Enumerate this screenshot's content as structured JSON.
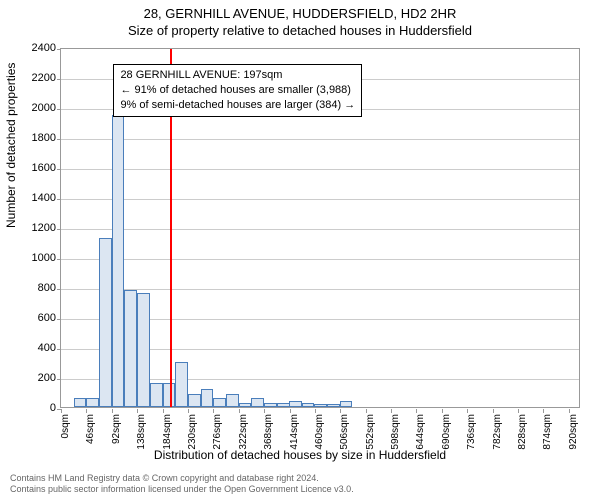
{
  "title": {
    "line1": "28, GERNHILL AVENUE, HUDDERSFIELD, HD2 2HR",
    "line2": "Size of property relative to detached houses in Huddersfield"
  },
  "chart": {
    "type": "histogram",
    "ylabel": "Number of detached properties",
    "xlabel": "Distribution of detached houses by size in Huddersfield",
    "ylim": [
      0,
      2400
    ],
    "ytick_step": 200,
    "xlim_sqm": [
      0,
      942
    ],
    "xtick_step_sqm": 46,
    "xtick_unit": "sqm",
    "bar_fill": "#dce6f2",
    "bar_stroke": "#4a7ebb",
    "grid_color": "#cccccc",
    "axis_color": "#999999",
    "background": "#ffffff",
    "bar_bin_width_sqm": 23,
    "bars": [
      {
        "x_sqm": 23,
        "count": 60
      },
      {
        "x_sqm": 46,
        "count": 60
      },
      {
        "x_sqm": 69,
        "count": 1130
      },
      {
        "x_sqm": 92,
        "count": 1950
      },
      {
        "x_sqm": 115,
        "count": 780
      },
      {
        "x_sqm": 138,
        "count": 760
      },
      {
        "x_sqm": 161,
        "count": 160
      },
      {
        "x_sqm": 184,
        "count": 160
      },
      {
        "x_sqm": 207,
        "count": 300
      },
      {
        "x_sqm": 230,
        "count": 90
      },
      {
        "x_sqm": 253,
        "count": 120
      },
      {
        "x_sqm": 276,
        "count": 60
      },
      {
        "x_sqm": 299,
        "count": 90
      },
      {
        "x_sqm": 322,
        "count": 30
      },
      {
        "x_sqm": 345,
        "count": 60
      },
      {
        "x_sqm": 368,
        "count": 30
      },
      {
        "x_sqm": 391,
        "count": 30
      },
      {
        "x_sqm": 413,
        "count": 40
      },
      {
        "x_sqm": 436,
        "count": 30
      },
      {
        "x_sqm": 459,
        "count": 20
      },
      {
        "x_sqm": 482,
        "count": 20
      },
      {
        "x_sqm": 505,
        "count": 40
      }
    ],
    "marker_line": {
      "x_sqm": 197,
      "color": "#ff0000"
    },
    "annotation": {
      "line1": "28 GERNHILL AVENUE: 197sqm",
      "line2": "← 91% of detached houses are smaller (3,988)",
      "line3": "9% of semi-detached houses are larger (384) →",
      "box_border": "#000000",
      "box_bg": "#ffffff",
      "pos_x_sqm": 95,
      "pos_y_count": 2300
    }
  },
  "footer": {
    "line1": "Contains HM Land Registry data © Crown copyright and database right 2024.",
    "line2": "Contains public sector information licensed under the Open Government Licence v3.0."
  }
}
